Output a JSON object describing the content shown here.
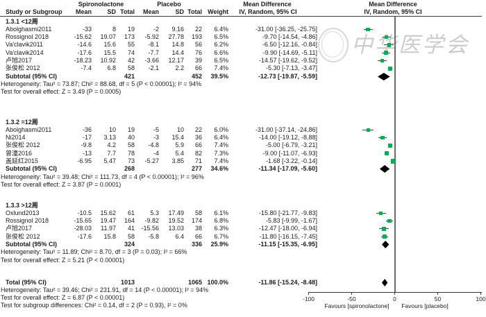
{
  "header": {
    "study_col": "Study or Subgroup",
    "spiro_group": "Spironolactone",
    "placebo_group": "Placebo",
    "md_group": "Mean Difference",
    "sub_cols": {
      "mean": "Mean",
      "sd": "SD",
      "total": "Total",
      "weight": "Weight",
      "ci": "IV, Random, 95% CI"
    },
    "plot_line1": "Mean Difference",
    "plot_line2": "IV, Random, 95% CI"
  },
  "watermark": {
    "text": "中华医学会"
  },
  "colors": {
    "square": "#00b050",
    "diamond": "#000000",
    "ci_line": "#3f3f3f",
    "zero_line": "#6a6a6a"
  },
  "chart_data": {
    "type": "forest",
    "axis": {
      "min": -100,
      "max": 100,
      "ticks": [
        -100,
        -50,
        0,
        50,
        100
      ],
      "favours_left": "Favours [spironolactone]",
      "favours_right": "Favours [placebo]"
    },
    "sections": [
      {
        "label": "1.3.1 <12周",
        "studies": [
          {
            "study": "Abolghasmi2011",
            "mean1": "-33",
            "sd1": "8",
            "total1": "19",
            "mean2": "-2",
            "sd2": "9.16",
            "total2": "22",
            "weight": "6.4%",
            "ci_text": "-31.00 [-36.25, -25.75]",
            "md": -31.0,
            "lo": -36.25,
            "hi": -25.75,
            "w": 6.4
          },
          {
            "study": "Rossignol 2018",
            "mean1": "-15.62",
            "sd1": "19.07",
            "total1": "173",
            "mean2": "-5.92",
            "sd2": "27.78",
            "total2": "193",
            "weight": "6.5%",
            "ci_text": "-9.70 [-14.54, -4.86]",
            "md": -9.7,
            "lo": -14.54,
            "hi": -4.86,
            "w": 6.5
          },
          {
            "study": "Va'clavik2011",
            "mean1": "-14.6",
            "sd1": "15.6",
            "total1": "55",
            "mean2": "-8.1",
            "sd2": "14.8",
            "total2": "56",
            "weight": "6.2%",
            "ci_text": "-6.50 [-12.16, -0.84]",
            "md": -6.5,
            "lo": -12.16,
            "hi": -0.84,
            "w": 6.2
          },
          {
            "study": "Va'clavik2014",
            "mean1": "-17.6",
            "sd1": "15.5",
            "total1": "74",
            "mean2": "-7.7",
            "sd2": "14.4",
            "total2": "76",
            "weight": "6.6%",
            "ci_text": "-9.90 [-14.69, -5.11]",
            "md": -9.9,
            "lo": -14.69,
            "hi": -5.11,
            "w": 6.6
          },
          {
            "study": "卢旭2017",
            "mean1": "-18.23",
            "sd1": "10.92",
            "total1": "42",
            "mean2": "-3.66",
            "sd2": "12.17",
            "total2": "39",
            "weight": "6.5%",
            "ci_text": "-14.57 [-19.62, -9.52]",
            "md": -14.57,
            "lo": -19.62,
            "hi": -9.52,
            "w": 6.5
          },
          {
            "study": "张俊松 2012",
            "mean1": "-7.4",
            "sd1": "6.8",
            "total1": "58",
            "mean2": "-2.1",
            "sd2": "2.2",
            "total2": "66",
            "weight": "7.4%",
            "ci_text": "-5.30 [-7.13, -3.47]",
            "md": -5.3,
            "lo": -7.13,
            "hi": -3.47,
            "w": 7.4
          }
        ],
        "subtotal": {
          "label": "Subtotal (95% CI)",
          "total1": "421",
          "total2": "452",
          "weight": "39.5%",
          "ci_text": "-12.73 [-19.87, -5.59]",
          "md": -12.73,
          "lo": -19.87,
          "hi": -5.59
        },
        "heterogeneity": "Heterogeneity: Tau² = 73.87; Chi² = 88.68, df = 5 (P < 0.00001); I² = 94%",
        "overall_effect": "Test for overall effect: Z = 3.49 (P = 0.0005)"
      },
      {
        "label": "1.3.2 =12周",
        "studies": [
          {
            "study": "Abolghasmi2011",
            "mean1": "-36",
            "sd1": "10",
            "total1": "19",
            "mean2": "-5",
            "sd2": "10",
            "total2": "22",
            "weight": "6.0%",
            "ci_text": "-31.00 [-37.14, -24.86]",
            "md": -31.0,
            "lo": -37.14,
            "hi": -24.86,
            "w": 6.0
          },
          {
            "study": "Ni2014",
            "mean1": "-17",
            "sd1": "3.13",
            "total1": "40",
            "mean2": "-3",
            "sd2": "15.4",
            "total2": "36",
            "weight": "6.4%",
            "ci_text": "-14.00 [-19.12, -8.88]",
            "md": -14.0,
            "lo": -19.12,
            "hi": -8.88,
            "w": 6.4
          },
          {
            "study": "张俊松 2012",
            "mean1": "-9.8",
            "sd1": "4.2",
            "total1": "58",
            "mean2": "-4.8",
            "sd2": "5.9",
            "total2": "66",
            "weight": "7.4%",
            "ci_text": "-5.00 [-6.79, -3.21]",
            "md": -5.0,
            "lo": -6.79,
            "hi": -3.21,
            "w": 7.4
          },
          {
            "study": "曾潼2016",
            "mean1": "-13",
            "sd1": "7.7",
            "total1": "78",
            "mean2": "-4",
            "sd2": "5.4",
            "total2": "82",
            "weight": "7.3%",
            "ci_text": "-9.00 [-11.07, -6.93]",
            "md": -9.0,
            "lo": -11.07,
            "hi": -6.93,
            "w": 7.3
          },
          {
            "study": "盖延红2015",
            "mean1": "-6.95",
            "sd1": "5.47",
            "total1": "73",
            "mean2": "-5.27",
            "sd2": "3.85",
            "total2": "71",
            "weight": "7.4%",
            "ci_text": "-1.68 [-3.22, -0.14]",
            "md": -1.68,
            "lo": -3.22,
            "hi": -0.14,
            "w": 7.4
          }
        ],
        "subtotal": {
          "label": "Subtotal (95% CI)",
          "total1": "268",
          "total2": "277",
          "weight": "34.6%",
          "ci_text": "-11.34 [-17.09, -5.60]",
          "md": -11.34,
          "lo": -17.09,
          "hi": -5.6
        },
        "heterogeneity": "Heterogeneity: Tau² = 39.48; Chi² = 111.73, df = 4 (P < 0.00001); I² = 96%",
        "overall_effect": "Test for overall effect: Z = 3.87 (P = 0.0001)"
      },
      {
        "label": "1.3.3 >12周",
        "studies": [
          {
            "study": "Oxlund2013",
            "mean1": "-10.5",
            "sd1": "15.62",
            "total1": "61",
            "mean2": "5.3",
            "sd2": "17.49",
            "total2": "58",
            "weight": "6.1%",
            "ci_text": "-15.80 [-21.77, -9.83]",
            "md": -15.8,
            "lo": -21.77,
            "hi": -9.83,
            "w": 6.1
          },
          {
            "study": "Rossignol 2018",
            "mean1": "-15.65",
            "sd1": "19.47",
            "total1": "164",
            "mean2": "-9.82",
            "sd2": "19.52",
            "total2": "174",
            "weight": "6.8%",
            "ci_text": "-5.83 [-9.99, -1.67]",
            "md": -5.83,
            "lo": -9.99,
            "hi": -1.67,
            "w": 6.8
          },
          {
            "study": "卢旭2017",
            "mean1": "-28.03",
            "sd1": "11.97",
            "total1": "41",
            "mean2": "-15.56",
            "sd2": "13.03",
            "total2": "38",
            "weight": "6.3%",
            "ci_text": "-12.47 [-18.00, -6.94]",
            "md": -12.47,
            "lo": -18.0,
            "hi": -6.94,
            "w": 6.3
          },
          {
            "study": "张俊松 2012",
            "mean1": "-17.6",
            "sd1": "15.8",
            "total1": "58",
            "mean2": "-5.8",
            "sd2": "6.4",
            "total2": "66",
            "weight": "6.7%",
            "ci_text": "-11.80 [-16.15, -7.45]",
            "md": -11.8,
            "lo": -16.15,
            "hi": -7.45,
            "w": 6.7
          }
        ],
        "subtotal": {
          "label": "Subtotal (95% CI)",
          "total1": "324",
          "total2": "336",
          "weight": "25.9%",
          "ci_text": "-11.15 [-15.35, -6.95]",
          "md": -11.15,
          "lo": -15.35,
          "hi": -6.95
        },
        "heterogeneity": "Heterogeneity: Tau² = 11.89; Chi² = 8.70, df = 3 (P = 0.03); I² = 66%",
        "overall_effect": "Test for overall effect: Z = 5.21 (P < 0.00001)"
      }
    ],
    "total": {
      "label": "Total (95% CI)",
      "total1": "1013",
      "total2": "1065",
      "weight": "100.0%",
      "ci_text": "-11.86 [-15.24, -8.48]",
      "md": -11.86,
      "lo": -15.24,
      "hi": -8.48,
      "heterogeneity": "Heterogeneity: Tau² = 39.46; Chi² = 231.91, df = 14 (P < 0.00001); I² = 94%",
      "overall_effect": "Test for overall effect: Z = 6.87 (P < 0.00001)",
      "subgroup_differences": "Test for subgroup differences: Chi² = 0.14, df = 2 (P = 0.93), I² = 0%"
    }
  }
}
